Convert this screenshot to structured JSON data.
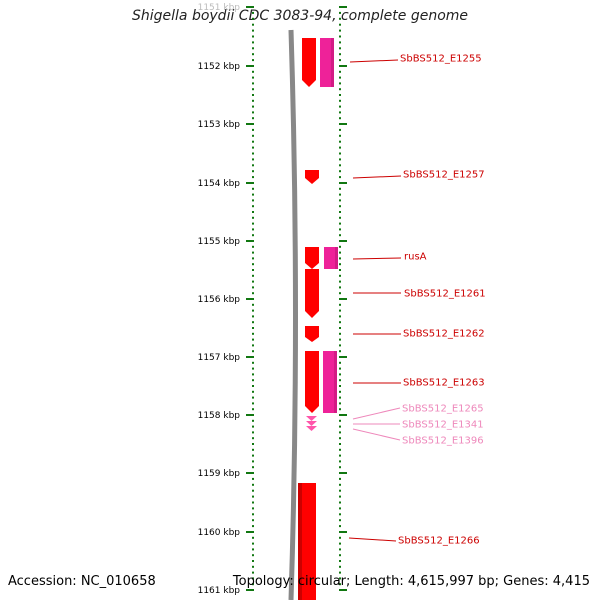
{
  "title": "Shigella boydii CDC 3083-94, complete genome",
  "footer": {
    "accession": "Accession: NC_010658",
    "topology": "Topology: circular; Length: 4,615,997 bp; Genes: 4,415"
  },
  "axis": {
    "labels": [
      "1151 kbp",
      "1152 kbp",
      "1153 kbp",
      "1154 kbp",
      "1155 kbp",
      "1156 kbp",
      "1157 kbp",
      "1158 kbp",
      "1159 kbp",
      "1160 kbp",
      "1161 kbp"
    ]
  },
  "colors": {
    "strand_forward": "#ff0000",
    "strand_reverse": "#ee2299",
    "label_dark": "#cc0000",
    "label_light": "#ee88bb",
    "tick": "#117711",
    "backbone": "#888888"
  },
  "genes": [
    {
      "name": "SbBS512_E1255",
      "style": "dark"
    },
    {
      "name": "SbBS512_E1257",
      "style": "dark"
    },
    {
      "name": "rusA",
      "style": "dark"
    },
    {
      "name": "SbBS512_E1261",
      "style": "dark"
    },
    {
      "name": "SbBS512_E1262",
      "style": "dark"
    },
    {
      "name": "SbBS512_E1263",
      "style": "dark"
    },
    {
      "name": "SbBS512_E1265",
      "style": "light"
    },
    {
      "name": "SbBS512_E1341",
      "style": "light"
    },
    {
      "name": "SbBS512_E1396",
      "style": "light"
    },
    {
      "name": "SbBS512_E1266",
      "style": "dark"
    }
  ]
}
